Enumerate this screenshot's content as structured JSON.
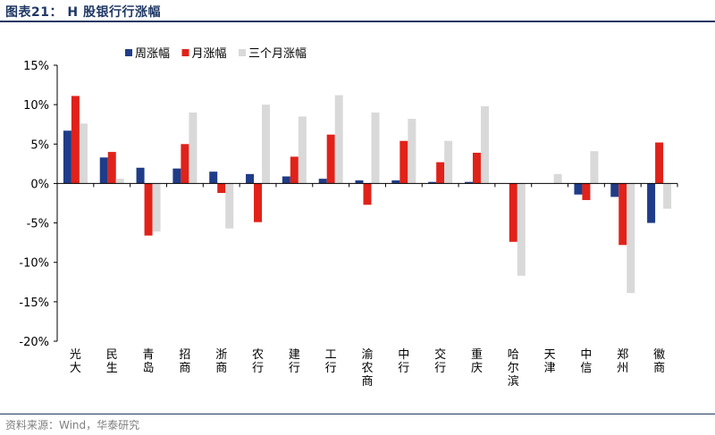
{
  "header": {
    "title": "图表21：  H 股银行行涨幅"
  },
  "footer": {
    "source": "资料来源：Wind，华泰研究"
  },
  "colors": {
    "weekly": "#1f3c88",
    "monthly": "#e0221a",
    "threeMonth": "#d9d9d9",
    "frame": "#1f3864"
  },
  "chart_data": {
    "type": "bar",
    "title": "H 股银行行涨幅",
    "categories": [
      "光大",
      "民生",
      "青岛",
      "招商",
      "浙商",
      "农行",
      "建行",
      "工行",
      "渝农商",
      "中行",
      "交行",
      "重庆",
      "哈尔滨",
      "天津",
      "中信",
      "郑州",
      "徽商"
    ],
    "series": [
      {
        "name": "周涨幅",
        "color": "#1f3c88",
        "values": [
          6.7,
          3.3,
          2.0,
          1.9,
          1.5,
          1.2,
          0.9,
          0.6,
          0.4,
          0.4,
          0.2,
          0.2,
          0.0,
          0.0,
          -1.4,
          -1.7,
          -5.0
        ]
      },
      {
        "name": "月涨幅",
        "color": "#e0221a",
        "values": [
          11.1,
          4.0,
          -6.6,
          5.0,
          -1.2,
          -4.9,
          3.4,
          6.2,
          -2.7,
          5.4,
          2.7,
          3.9,
          -7.4,
          0.0,
          -2.1,
          -7.8,
          5.2
        ]
      },
      {
        "name": "三个月涨幅",
        "color": "#d9d9d9",
        "values": [
          7.6,
          0.6,
          -6.1,
          9.0,
          -5.7,
          10.0,
          8.5,
          11.2,
          9.0,
          8.2,
          5.4,
          9.8,
          -11.7,
          1.2,
          4.1,
          -13.9,
          -3.2
        ]
      }
    ],
    "ylim": [
      -20,
      15
    ],
    "yticks": [
      15,
      10,
      5,
      0,
      -5,
      -10,
      -15,
      -20
    ],
    "ytick_labels": [
      "15%",
      "10%",
      "5%",
      "0%",
      "-5%",
      "-10%",
      "-15%",
      "-20%"
    ],
    "xlabel": "",
    "ylabel": "",
    "legend": "top-left",
    "grid": false
  }
}
